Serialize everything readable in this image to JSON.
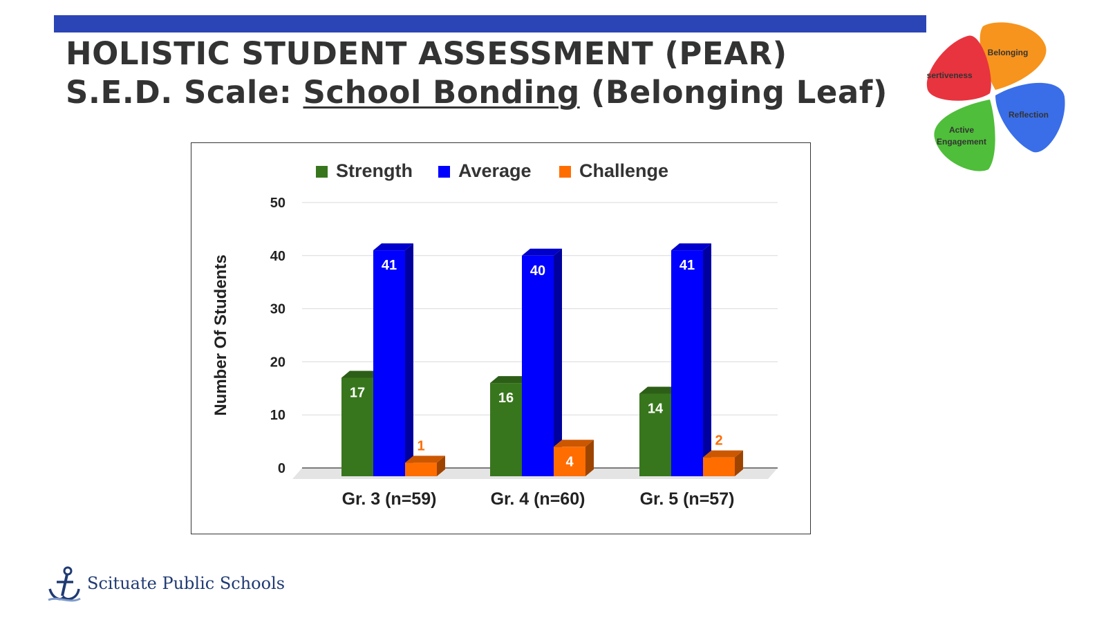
{
  "slide": {
    "title_line1": "HOLISTIC STUDENT ASSESSMENT (PEAR)",
    "title_line2_prefix": "S.E.D. Scale: ",
    "title_line2_underlined": "School Bonding",
    "title_line2_suffix": " (Belonging Leaf)",
    "accent_color": "#2b44b6"
  },
  "leaf_logo": {
    "petals": [
      {
        "label": "Belonging",
        "color": "#f7941d"
      },
      {
        "label": "Assertiveness",
        "color": "#e8343f"
      },
      {
        "label": "Reflection",
        "color": "#3a6ee8"
      },
      {
        "label": "Active",
        "label2": "Engagement",
        "color": "#4fbe3a"
      }
    ]
  },
  "footer": {
    "school_name": "Scituate Public Schools",
    "icon": "anchor-icon"
  },
  "chart_data": {
    "type": "bar",
    "style": "3d",
    "categories": [
      "Gr. 3 (n=59)",
      "Gr. 4 (n=60)",
      "Gr. 5 (n=57)"
    ],
    "series": [
      {
        "name": "Strength",
        "color": "#38761d",
        "values": [
          17,
          16,
          14
        ]
      },
      {
        "name": "Average",
        "color": "#0000ff",
        "values": [
          41,
          40,
          41
        ]
      },
      {
        "name": "Challenge",
        "color": "#ff6d01",
        "values": [
          1,
          4,
          2
        ]
      }
    ],
    "ylabel": "Number Of Students",
    "ylim": [
      0,
      50
    ],
    "yticks": [
      0,
      10,
      20,
      30,
      40,
      50
    ],
    "grid": true,
    "legend": "top"
  }
}
